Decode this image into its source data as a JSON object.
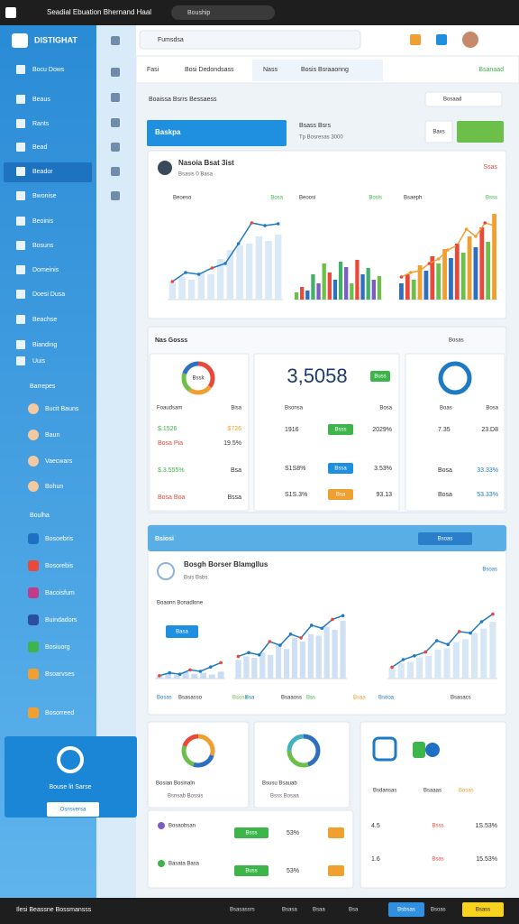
{
  "browser": {
    "tab": "Seadial Ebuation Bhernand Haal",
    "address": "Bouship"
  },
  "sidebar": {
    "brand": "DISTIGHAT",
    "menu": [
      "Bocu Dows",
      "Beaus",
      "Rants",
      "Bead",
      "Beador",
      "Bwonise",
      "Beoinis",
      "Bosuns",
      "Domeinis",
      "Doesi Dusa",
      "Beachse",
      "Bianding",
      "Uuis"
    ],
    "people_heading": "Barrepes",
    "people": [
      "Bucit Bauns",
      "Baun",
      "Vaecwars",
      "Bohun"
    ],
    "apps_heading": "Boulha",
    "apps": [
      "Bosoebris",
      "Bosorebis",
      "Bacoisfum",
      "Buindadors",
      "Bosiuorg",
      "Bsoarvses",
      "Bosorreed"
    ],
    "promo": {
      "title": "Bouse lit Sarse",
      "button": "Osnsversa"
    }
  },
  "header": {
    "search": "Fumsdsa"
  },
  "tabs": {
    "items": [
      "Fasi",
      "Bosi Dedondsass",
      "Nass",
      "Bosis Bsraaonng"
    ],
    "action": "Bsanaad"
  },
  "toolbar": {
    "title": "Boaissa Bsrrs Bessaess",
    "button": "Bosaad",
    "primary": "Baskpa",
    "info_title": "Bsass Bsrs",
    "info_sub": "Tp Bosresas 3000",
    "secondary": "Baxs"
  },
  "overview": {
    "name": "Nasoia Bsat 3ist",
    "meta": "Bsasis 0 Basa",
    "badge": "Ssas",
    "charts": [
      {
        "title": "Beoeso",
        "tag": "Bosa",
        "ylim": [
          0,
          100
        ],
        "colors": [
          "#dbe8f5"
        ],
        "line_color": "#1f7ac4",
        "bars": [
          20,
          25,
          22,
          30,
          28,
          45,
          55,
          60,
          62,
          70,
          65,
          72
        ],
        "line": [
          20,
          30,
          28,
          35,
          40,
          62,
          85,
          82,
          84
        ]
      },
      {
        "title": "Beoosi",
        "tag": "Bosis",
        "ylim": [
          0,
          100
        ],
        "colors": [
          "#6cc04a",
          "#e8493a",
          "#2f6fc0",
          "#43b06a",
          "#7a5cc4"
        ],
        "bars": [
          8,
          14,
          10,
          28,
          18,
          40,
          30,
          22,
          42,
          36,
          18,
          44,
          28,
          35,
          22,
          26
        ]
      },
      {
        "title": "Bsaeph",
        "tag": "Bsss",
        "ylim": [
          0,
          100
        ],
        "colors": [
          "#2f6fc0",
          "#e8493a",
          "#6cc04a",
          "#f0a030"
        ],
        "line_color": "#f0a030",
        "bars": [
          18,
          28,
          22,
          38,
          32,
          48,
          40,
          56,
          46,
          62,
          52,
          70,
          58,
          80,
          64,
          95
        ],
        "line": [
          25,
          30,
          32,
          40,
          45,
          55,
          60,
          78,
          70,
          85,
          82
        ]
      }
    ]
  },
  "stats": {
    "title": "Nas Gosss",
    "action": "Bosas",
    "left": {
      "center": "Bssk",
      "segments": [
        35,
        25,
        20,
        20
      ],
      "colors": [
        "#e8493a",
        "#f0a030",
        "#6cc04a",
        "#2f6fc0"
      ],
      "header": [
        "Foaudsam",
        "Bisa"
      ],
      "rows": [
        [
          "$.1526",
          "$726"
        ],
        [
          "Bosa Pia",
          "19.5%"
        ],
        [
          "$.3.555%",
          "Bsa"
        ],
        [
          "Bosa Boa",
          "Bssa"
        ]
      ]
    },
    "middle": {
      "big": "3,5058",
      "pill": "Buss",
      "header": [
        "Bsonsa",
        "Bosa"
      ],
      "rows": [
        [
          "1916",
          "Bsss",
          "2029%"
        ],
        [
          "S1S8%",
          "Bssa",
          "3.53%"
        ],
        [
          "S1S.3%",
          "Bsa",
          "93.13"
        ]
      ]
    },
    "right": {
      "segments": [
        100
      ],
      "colors": [
        "#1f7ac4"
      ],
      "header": [
        "Boas",
        "Bosa"
      ],
      "rows": [
        [
          "7.35",
          "23.D8"
        ],
        [
          "Bosa",
          "33.33%"
        ],
        [
          "Bosa",
          "53.33%"
        ]
      ]
    }
  },
  "activity": {
    "heading": "Bsiosi",
    "heading_action": "Bsoas",
    "title": "Bosgh Borser Blamgllus",
    "subtitle": "Bsis Bsbs",
    "link": "Bsoas",
    "small_label": "Boaonn Bonadlone",
    "small_button": "Basa",
    "charts": [
      {
        "ylim": [
          0,
          100
        ],
        "line_color": "#1f7ac4",
        "colors": [
          "#c9dcf2"
        ],
        "bars": [
          10,
          18,
          12,
          22,
          16,
          20,
          14,
          24
        ],
        "line": [
          10,
          20,
          15,
          30,
          25,
          40,
          55
        ]
      },
      {
        "ylim": [
          0,
          100
        ],
        "line_color": "#1f7ac4",
        "colors": [
          "#cfe0f3"
        ],
        "bars": [
          25,
          30,
          28,
          35,
          32,
          45,
          40,
          55,
          50,
          60,
          58,
          70,
          66,
          78
        ],
        "line": [
          30,
          35,
          32,
          50,
          45,
          60,
          55,
          72,
          68,
          80,
          85
        ]
      },
      {
        "ylim": [
          0,
          100
        ],
        "line_color": "#1f7ac4",
        "colors": [
          "#d8e7f6"
        ],
        "bars": [
          15,
          20,
          22,
          28,
          30,
          38,
          40,
          48,
          52,
          60,
          66,
          75
        ],
        "line": [
          15,
          25,
          30,
          35,
          50,
          45,
          62,
          60,
          75,
          85
        ]
      }
    ],
    "legend": [
      "Bosas",
      "Bsasasso",
      "Bsosa",
      "Bsa",
      "Bsaaoss",
      "Bss",
      "Bsaa",
      "Bsooa",
      "Bsasacs"
    ]
  },
  "bottom": {
    "left": {
      "segments": [
        30,
        25,
        25,
        20
      ],
      "colors": [
        "#f0a030",
        "#2f6fc0",
        "#6cc04a",
        "#e8493a"
      ],
      "title": "Bosian Bosinaln",
      "sub": "Bsnsab Bossis"
    },
    "middle": {
      "segments": [
        45,
        30,
        25
      ],
      "colors": [
        "#2f6fc0",
        "#6cc04a",
        "#43b0c0"
      ],
      "title": "Bsusu Bsauab",
      "sub": "Bsss Bosaa"
    },
    "list": {
      "rows": [
        [
          "Bosaobsan",
          "Bsss",
          "53%"
        ],
        [
          "Basata Basa",
          "Buss",
          "53%"
        ]
      ]
    },
    "right": {
      "labels": [
        "Bsdansas",
        "Bsaaas",
        "Bosas"
      ],
      "rows": [
        [
          "4.5",
          "Bsss",
          "1S.53%"
        ],
        [
          "1.6",
          "Bsas",
          "15.53%"
        ]
      ]
    }
  },
  "footer": {
    "left": "Ilesi Beassne Bossmansss",
    "items": [
      "Bsasassrs",
      "Bsasa",
      "Bsaa",
      "Bsa"
    ],
    "primary": "Bsbsas",
    "secondary": "Bsoas",
    "highlight": "Bsass"
  }
}
